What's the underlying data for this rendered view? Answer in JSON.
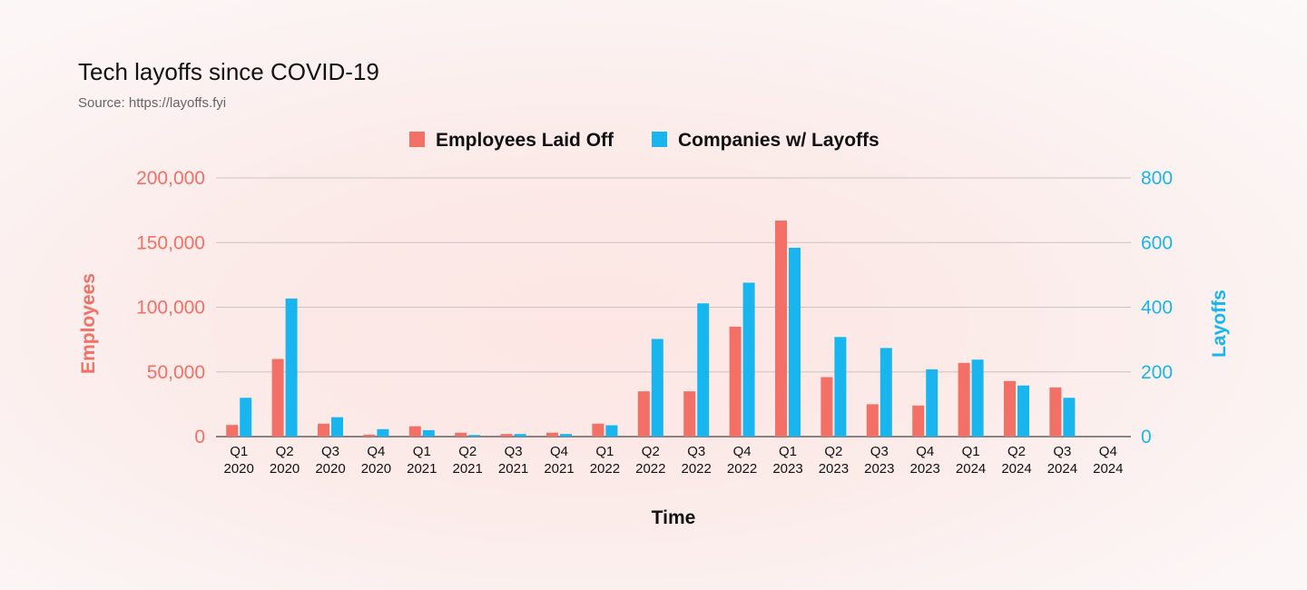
{
  "chart_data": {
    "type": "bar",
    "title": "Tech layoffs since COVID-19",
    "subtitle": "Source: https://layoffs.fyi",
    "xlabel": "Time",
    "categories": [
      [
        "Q1",
        "2020"
      ],
      [
        "Q2",
        "2020"
      ],
      [
        "Q3",
        "2020"
      ],
      [
        "Q4",
        "2020"
      ],
      [
        "Q1",
        "2021"
      ],
      [
        "Q2",
        "2021"
      ],
      [
        "Q3",
        "2021"
      ],
      [
        "Q4",
        "2021"
      ],
      [
        "Q1",
        "2022"
      ],
      [
        "Q2",
        "2022"
      ],
      [
        "Q3",
        "2022"
      ],
      [
        "Q4",
        "2022"
      ],
      [
        "Q1",
        "2023"
      ],
      [
        "Q2",
        "2023"
      ],
      [
        "Q3",
        "2023"
      ],
      [
        "Q4",
        "2023"
      ],
      [
        "Q1",
        "2024"
      ],
      [
        "Q2",
        "2024"
      ],
      [
        "Q3",
        "2024"
      ],
      [
        "Q4",
        "2024"
      ]
    ],
    "series": [
      {
        "name": "Employees Laid Off",
        "axis": "left",
        "color": "#f37067",
        "values": [
          9000,
          60000,
          10000,
          1500,
          8000,
          3000,
          2000,
          3000,
          10000,
          35000,
          35000,
          85000,
          167000,
          46000,
          25000,
          24000,
          57000,
          43000,
          38000,
          null
        ]
      },
      {
        "name": "Companies w/ Layoffs",
        "axis": "right",
        "color": "#19b5ef",
        "values": [
          120,
          427,
          60,
          23,
          20,
          5,
          8,
          8,
          35,
          302,
          412,
          476,
          584,
          308,
          274,
          208,
          238,
          158,
          120,
          null
        ]
      }
    ],
    "y_left": {
      "label": "Employees",
      "ylim": [
        0,
        200000
      ],
      "ticks": [
        "0",
        "50,000",
        "100,000",
        "150,000",
        "200,000"
      ]
    },
    "y_right": {
      "label": "Layoffs",
      "ylim": [
        0,
        800
      ],
      "ticks": [
        "0",
        "200",
        "400",
        "600",
        "800"
      ]
    },
    "legend_position": "top-center",
    "grid": true
  }
}
